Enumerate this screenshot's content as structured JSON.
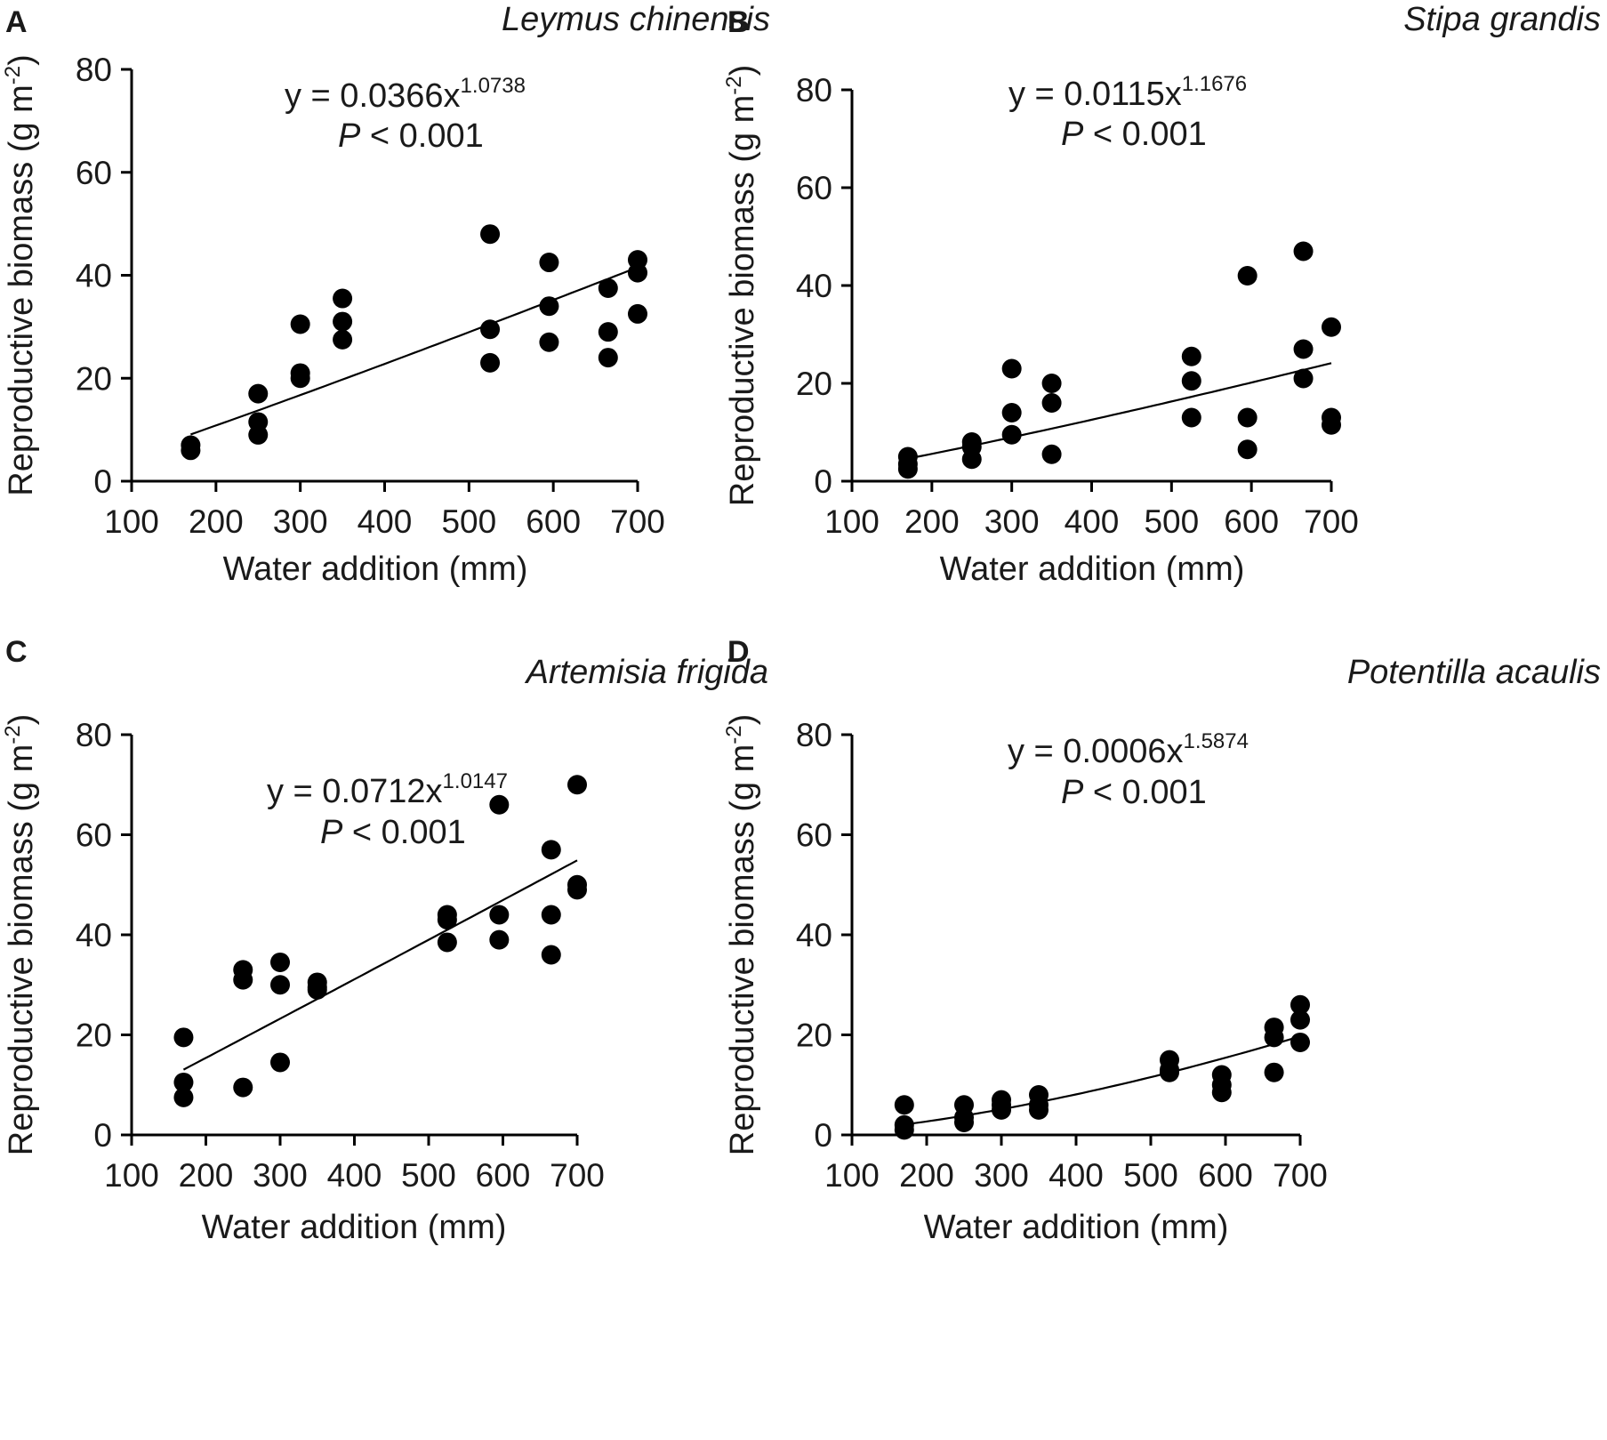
{
  "chart_data": [
    {
      "type": "scatter",
      "panel": "A",
      "title": "Leymus chinensis",
      "xlabel": "Water addition (mm)",
      "ylabel_main": "Reproductive biomass (g m",
      "ylabel_sup": "-2",
      "ylabel_close": ")",
      "xlim": [
        100,
        700
      ],
      "ylim": [
        0,
        80
      ],
      "xticks": [
        100,
        200,
        300,
        400,
        500,
        600,
        700
      ],
      "yticks": [
        0,
        20,
        40,
        60,
        80
      ],
      "equation_main": "y = 0.0366x",
      "equation_exp": "1.0738",
      "p_italic": "P",
      "p_rest": " < 0.001",
      "fit": {
        "a": 0.0366,
        "b": 1.0738
      },
      "points": [
        {
          "x": 170,
          "y": 7
        },
        {
          "x": 170,
          "y": 6
        },
        {
          "x": 250,
          "y": 17
        },
        {
          "x": 250,
          "y": 11.5
        },
        {
          "x": 250,
          "y": 9
        },
        {
          "x": 300,
          "y": 30.5
        },
        {
          "x": 300,
          "y": 21
        },
        {
          "x": 300,
          "y": 20
        },
        {
          "x": 350,
          "y": 35.5
        },
        {
          "x": 350,
          "y": 31
        },
        {
          "x": 350,
          "y": 27.5
        },
        {
          "x": 525,
          "y": 48
        },
        {
          "x": 525,
          "y": 29.5
        },
        {
          "x": 525,
          "y": 23
        },
        {
          "x": 595,
          "y": 42.5
        },
        {
          "x": 595,
          "y": 34
        },
        {
          "x": 595,
          "y": 27
        },
        {
          "x": 665,
          "y": 37.5
        },
        {
          "x": 665,
          "y": 29
        },
        {
          "x": 665,
          "y": 24
        },
        {
          "x": 700,
          "y": 43
        },
        {
          "x": 700,
          "y": 40.5
        },
        {
          "x": 700,
          "y": 32.5
        }
      ]
    },
    {
      "type": "scatter",
      "panel": "B",
      "title": "Stipa grandis",
      "xlabel": "Water addition (mm)",
      "ylabel_main": "Reproductive biomass (g m",
      "ylabel_sup": "-2",
      "ylabel_close": ")",
      "xlim": [
        100,
        700
      ],
      "ylim": [
        0,
        80
      ],
      "xticks": [
        100,
        200,
        300,
        400,
        500,
        600,
        700
      ],
      "yticks": [
        0,
        20,
        40,
        60,
        80
      ],
      "equation_main": "y = 0.0115x",
      "equation_exp": "1.1676",
      "p_italic": "P",
      "p_rest": " < 0.001",
      "fit": {
        "a": 0.0115,
        "b": 1.1676
      },
      "points": [
        {
          "x": 170,
          "y": 5
        },
        {
          "x": 170,
          "y": 3.5
        },
        {
          "x": 170,
          "y": 2.5
        },
        {
          "x": 250,
          "y": 8
        },
        {
          "x": 250,
          "y": 7
        },
        {
          "x": 250,
          "y": 4.5
        },
        {
          "x": 300,
          "y": 23
        },
        {
          "x": 300,
          "y": 14
        },
        {
          "x": 300,
          "y": 9.5
        },
        {
          "x": 350,
          "y": 20
        },
        {
          "x": 350,
          "y": 16
        },
        {
          "x": 350,
          "y": 5.5
        },
        {
          "x": 525,
          "y": 25.5
        },
        {
          "x": 525,
          "y": 20.5
        },
        {
          "x": 525,
          "y": 13
        },
        {
          "x": 595,
          "y": 42
        },
        {
          "x": 595,
          "y": 13
        },
        {
          "x": 595,
          "y": 6.5
        },
        {
          "x": 665,
          "y": 47
        },
        {
          "x": 665,
          "y": 27
        },
        {
          "x": 665,
          "y": 21
        },
        {
          "x": 700,
          "y": 31.5
        },
        {
          "x": 700,
          "y": 13
        },
        {
          "x": 700,
          "y": 11.5
        }
      ]
    },
    {
      "type": "scatter",
      "panel": "C",
      "title": "Artemisia frigida",
      "xlabel": "Water addition (mm)",
      "ylabel_main": "Reproductive biomass (g m",
      "ylabel_sup": "-2",
      "ylabel_close": ")",
      "xlim": [
        100,
        700
      ],
      "ylim": [
        0,
        80
      ],
      "xticks": [
        100,
        200,
        300,
        400,
        500,
        600,
        700
      ],
      "yticks": [
        0,
        20,
        40,
        60,
        80
      ],
      "equation_main": "y = 0.0712x",
      "equation_exp": "1.0147",
      "p_italic": "P",
      "p_rest": " < 0.001",
      "fit": {
        "a": 0.0712,
        "b": 1.0147
      },
      "points": [
        {
          "x": 170,
          "y": 19.5
        },
        {
          "x": 170,
          "y": 10.5
        },
        {
          "x": 170,
          "y": 7.5
        },
        {
          "x": 250,
          "y": 33
        },
        {
          "x": 250,
          "y": 31
        },
        {
          "x": 250,
          "y": 9.5
        },
        {
          "x": 300,
          "y": 34.5
        },
        {
          "x": 300,
          "y": 30
        },
        {
          "x": 300,
          "y": 14.5
        },
        {
          "x": 350,
          "y": 30.5
        },
        {
          "x": 350,
          "y": 29.5
        },
        {
          "x": 350,
          "y": 29
        },
        {
          "x": 525,
          "y": 44
        },
        {
          "x": 525,
          "y": 43
        },
        {
          "x": 525,
          "y": 38.5
        },
        {
          "x": 595,
          "y": 66
        },
        {
          "x": 595,
          "y": 44
        },
        {
          "x": 595,
          "y": 39
        },
        {
          "x": 665,
          "y": 57
        },
        {
          "x": 665,
          "y": 44
        },
        {
          "x": 665,
          "y": 36
        },
        {
          "x": 700,
          "y": 70
        },
        {
          "x": 700,
          "y": 50
        },
        {
          "x": 700,
          "y": 49
        }
      ]
    },
    {
      "type": "scatter",
      "panel": "D",
      "title": "Potentilla acaulis",
      "xlabel": "Water addition (mm)",
      "ylabel_main": "Reproductive biomass (g m",
      "ylabel_sup": "-2",
      "ylabel_close": ")",
      "xlim": [
        100,
        700
      ],
      "ylim": [
        0,
        80
      ],
      "xticks": [
        100,
        200,
        300,
        400,
        500,
        600,
        700
      ],
      "yticks": [
        0,
        20,
        40,
        60,
        80
      ],
      "equation_main": "y = 0.0006x",
      "equation_exp": "1.5874",
      "p_italic": "P",
      "p_rest": " < 0.001",
      "fit": {
        "a": 0.0006,
        "b": 1.5874
      },
      "points": [
        {
          "x": 170,
          "y": 6
        },
        {
          "x": 170,
          "y": 2
        },
        {
          "x": 170,
          "y": 1
        },
        {
          "x": 250,
          "y": 6
        },
        {
          "x": 250,
          "y": 3.5
        },
        {
          "x": 250,
          "y": 2.5
        },
        {
          "x": 300,
          "y": 7
        },
        {
          "x": 300,
          "y": 6
        },
        {
          "x": 300,
          "y": 5
        },
        {
          "x": 350,
          "y": 8
        },
        {
          "x": 350,
          "y": 6
        },
        {
          "x": 350,
          "y": 5
        },
        {
          "x": 525,
          "y": 15
        },
        {
          "x": 525,
          "y": 13
        },
        {
          "x": 525,
          "y": 12.5
        },
        {
          "x": 595,
          "y": 12
        },
        {
          "x": 595,
          "y": 10
        },
        {
          "x": 595,
          "y": 8.5
        },
        {
          "x": 665,
          "y": 21.5
        },
        {
          "x": 665,
          "y": 19.5
        },
        {
          "x": 665,
          "y": 12.5
        },
        {
          "x": 700,
          "y": 26
        },
        {
          "x": 700,
          "y": 23
        },
        {
          "x": 700,
          "y": 18.5
        }
      ]
    }
  ]
}
